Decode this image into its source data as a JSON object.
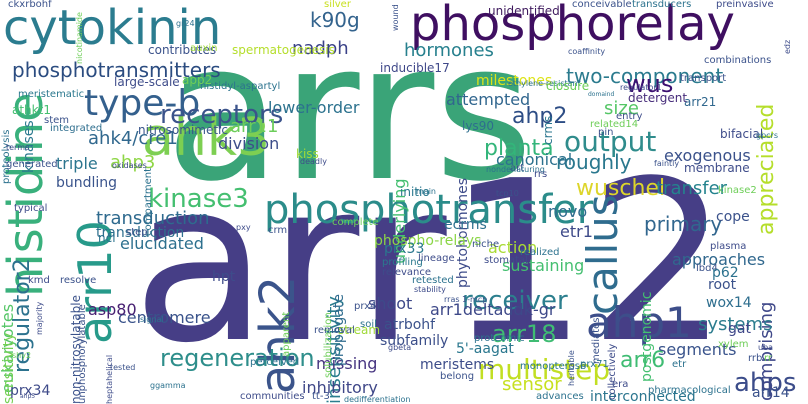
{
  "word_cloud": {
    "words": [
      {
        "text": "arrs",
        "color": "#3aa478"
      },
      {
        "text": "arr12",
        "color": "#463e86"
      },
      {
        "text": "phosphorelay",
        "color": "#3f0f61"
      },
      {
        "text": "cytokinin",
        "color": "#2b7c8f"
      },
      {
        "text": "histidine",
        "color": "#39b07c"
      },
      {
        "text": "ahk3",
        "color": "#7dcf52"
      },
      {
        "text": "callus",
        "color": "#2f6c8e"
      },
      {
        "text": "ahk2",
        "color": "#3b548b"
      },
      {
        "text": "arr10",
        "color": "#279a8a"
      },
      {
        "text": "phosphotransfer",
        "color": "#2b8c8a"
      },
      {
        "text": "type-b",
        "color": "#34608d"
      },
      {
        "text": "kinase3",
        "color": "#44bf70"
      },
      {
        "text": "phosphotransmitters",
        "color": "#2b4c80"
      },
      {
        "text": "regulator2",
        "color": "#2c728e"
      },
      {
        "text": "regeneration",
        "color": "#2e8e8b"
      },
      {
        "text": "ahp1",
        "color": "#3d4e8a"
      },
      {
        "text": "receptors",
        "color": "#3b538b"
      },
      {
        "text": "output",
        "color": "#2f8c8c"
      },
      {
        "text": "multistep",
        "color": "#c2df23"
      },
      {
        "text": "wuschel",
        "color": "#ddd52a"
      },
      {
        "text": "ahps",
        "color": "#3b4c8a"
      },
      {
        "text": "receiver",
        "color": "#2c7f8e"
      },
      {
        "text": "unidentified",
        "color": "#3f1a5e"
      },
      {
        "text": "k90g",
        "color": "#33638d"
      },
      {
        "text": "nadph",
        "color": "#3a4288"
      },
      {
        "text": "hormones",
        "color": "#27808e"
      },
      {
        "text": "two-component",
        "color": "#2b7b8e"
      },
      {
        "text": "transduction",
        "color": "#2e6a8e"
      },
      {
        "text": "ahk4/cre1",
        "color": "#31688e"
      },
      {
        "text": "arr11",
        "color": "#6ccd5a"
      },
      {
        "text": "ahp2",
        "color": "#2d4d85"
      },
      {
        "text": "planta",
        "color": "#33b57a"
      },
      {
        "text": "roughly",
        "color": "#2a788e"
      },
      {
        "text": "wus",
        "color": "#3b0f70"
      },
      {
        "text": "size",
        "color": "#55c666"
      },
      {
        "text": "appreciated",
        "color": "#b5de2b"
      },
      {
        "text": "arr18",
        "color": "#3fbc73"
      },
      {
        "text": "ahp3",
        "color": "#8ed645"
      },
      {
        "text": "eukaryotes",
        "color": "#55c667"
      },
      {
        "text": "insensitivity",
        "color": "#2a7d8e"
      },
      {
        "text": "primary",
        "color": "#31668e"
      },
      {
        "text": "comprising",
        "color": "#3f4889"
      },
      {
        "text": "systems",
        "color": "#2c7c8e"
      },
      {
        "text": "arr6",
        "color": "#3fbc73"
      },
      {
        "text": "sensor",
        "color": "#c7e020"
      },
      {
        "text": "segments",
        "color": "#3a548c"
      },
      {
        "text": "inhibitory",
        "color": "#3f4788"
      },
      {
        "text": "missing",
        "color": "#463480"
      },
      {
        "text": "elucidated",
        "color": "#2d708e"
      },
      {
        "text": "transfer",
        "color": "#25838e"
      },
      {
        "text": "division",
        "color": "#3d4e8a"
      },
      {
        "text": "lower-order",
        "color": "#2c728e"
      },
      {
        "text": "attempted",
        "color": "#31668e"
      },
      {
        "text": "canonical",
        "color": "#2c718e"
      },
      {
        "text": "exogenous",
        "color": "#3b528b"
      },
      {
        "text": "novo",
        "color": "#2f6c8e"
      },
      {
        "text": "shoot",
        "color": "#3e4989"
      },
      {
        "text": "action",
        "color": "#a8db34"
      },
      {
        "text": "underlying",
        "color": "#44bf70"
      },
      {
        "text": "phytohormones",
        "color": "#3e4c8a"
      },
      {
        "text": "triple",
        "color": "#2b758e"
      },
      {
        "text": "centromere",
        "color": "#3a538b"
      },
      {
        "text": "subfamily",
        "color": "#3c4f8a"
      },
      {
        "text": "atrbohf",
        "color": "#3b528b"
      },
      {
        "text": "arr1deltaddk-gr",
        "color": "#3e4989"
      },
      {
        "text": "propagate",
        "color": "#2f6b8e"
      },
      {
        "text": "transduction",
        "color": "#2e6f8e"
      },
      {
        "text": "lys90",
        "color": "#2e6e8e"
      },
      {
        "text": "crms",
        "color": "#2a768e"
      },
      {
        "text": "spermatogenesis",
        "color": "#b5de2b"
      },
      {
        "text": "contributes",
        "color": "#3b528b"
      },
      {
        "text": "milestones",
        "color": "#dde318"
      },
      {
        "text": "detergent",
        "color": "#472d7b"
      },
      {
        "text": "arr21",
        "color": "#31688e"
      },
      {
        "text": "phospho-relays",
        "color": "#8bd646"
      },
      {
        "text": "ecrms",
        "color": "#2d708e"
      },
      {
        "text": "etr1",
        "color": "#3e4a89"
      },
      {
        "text": "prx33",
        "color": "#2a788e"
      },
      {
        "text": "nitrosomimetic",
        "color": "#39558c"
      },
      {
        "text": "kinases",
        "color": "#2a788e"
      },
      {
        "text": "meristems",
        "color": "#3d4d8a"
      },
      {
        "text": "5'-aagat",
        "color": "#2a778e"
      },
      {
        "text": "asp80",
        "color": "#482173"
      },
      {
        "text": "hpt",
        "color": "#3e4c8a"
      },
      {
        "text": "non-nitrosylatable",
        "color": "#3b528b"
      },
      {
        "text": "bundling",
        "color": "#3a548c"
      },
      {
        "text": "sensitivity",
        "color": "#75d054"
      },
      {
        "text": "wox14",
        "color": "#2e6e8e"
      },
      {
        "text": "gat",
        "color": "#3f4788"
      },
      {
        "text": "interconnected",
        "color": "#2b758e"
      },
      {
        "text": "arr14",
        "color": "#3b528b"
      },
      {
        "text": "prx34",
        "color": "#3e4a89"
      },
      {
        "text": "sustaining",
        "color": "#44bf70"
      },
      {
        "text": "approaches",
        "color": "#31688e"
      },
      {
        "text": "postgenomic",
        "color": "#44bf70"
      },
      {
        "text": "advances",
        "color": "#2c728e"
      },
      {
        "text": "monopteros6",
        "color": "#2a778e"
      },
      {
        "text": "athkt1",
        "color": "#44bf70"
      },
      {
        "text": "histidyl-aspartyl",
        "color": "#2c738e"
      },
      {
        "text": "inducible17",
        "color": "#3f4889"
      },
      {
        "text": "app2",
        "color": "#6ece58"
      },
      {
        "text": "large-scale",
        "color": "#3e4c8a"
      },
      {
        "text": "integrated",
        "color": "#2e6e8e"
      },
      {
        "text": "meristematic",
        "color": "#2a788e"
      },
      {
        "text": "stem",
        "color": "#3b528b"
      },
      {
        "text": "auxin",
        "color": "#a0da39"
      },
      {
        "text": "silver",
        "color": "#c8e020"
      },
      {
        "text": "gr24",
        "color": "#2c718e"
      },
      {
        "text": "wound",
        "color": "#3b528b"
      },
      {
        "text": "conceivable",
        "color": "#3b528b"
      },
      {
        "text": "transducers",
        "color": "#2c728e"
      },
      {
        "text": "preinvasive",
        "color": "#3e4c8a"
      },
      {
        "text": "coaffinity",
        "color": "#3b528b"
      },
      {
        "text": "edz",
        "color": "#3e4c8a"
      },
      {
        "text": "combinations",
        "color": "#3b528b"
      },
      {
        "text": "transport",
        "color": "#3b528b"
      },
      {
        "text": "regulator1",
        "color": "#3e4c8a"
      },
      {
        "text": "ethylene-resistant",
        "color": "#2c728e"
      },
      {
        "text": "ckxrbohf",
        "color": "#3b528b"
      },
      {
        "text": "proteolysis",
        "color": "#2c728e"
      },
      {
        "text": "terms",
        "color": "#3e4c8a"
      },
      {
        "text": "generated",
        "color": "#3b528b"
      },
      {
        "text": "oxidases",
        "color": "#3e4c8a"
      },
      {
        "text": "compartment",
        "color": "#2c728e"
      },
      {
        "text": "kiss",
        "color": "#a0da39"
      },
      {
        "text": "deadly",
        "color": "#3e4c8a"
      },
      {
        "text": "main",
        "color": "#2c728e"
      },
      {
        "text": "art",
        "color": "#3b528b"
      },
      {
        "text": "profiling",
        "color": "#2a788e"
      },
      {
        "text": "relevance",
        "color": "#3e4c8a"
      },
      {
        "text": "retested",
        "color": "#2c728e"
      },
      {
        "text": "closure",
        "color": "#6ece58"
      },
      {
        "text": "domaind",
        "color": "#2c728e"
      },
      {
        "text": "entry",
        "color": "#3e4c8a"
      },
      {
        "text": "related14",
        "color": "#6ece58"
      },
      {
        "text": "pin",
        "color": "#3b528b"
      },
      {
        "text": "bifacial",
        "color": "#3e4c8a"
      },
      {
        "text": "gpcrs",
        "color": "#2c728e"
      },
      {
        "text": "faintly",
        "color": "#3b528b"
      },
      {
        "text": "membrane",
        "color": "#3e4c8a"
      },
      {
        "text": "nondenaturing",
        "color": "#2c728e"
      },
      {
        "text": "tcp10",
        "color": "#3b528b"
      },
      {
        "text": "initio",
        "color": "#2a788e"
      },
      {
        "text": "rrs",
        "color": "#3e4c8a"
      },
      {
        "text": "kinase2",
        "color": "#6ece58"
      },
      {
        "text": "cope",
        "color": "#3b528b"
      },
      {
        "text": "plasma",
        "color": "#3e4c8a"
      },
      {
        "text": "lbd4",
        "color": "#3b528b"
      },
      {
        "text": "p62",
        "color": "#2c728e"
      },
      {
        "text": "root",
        "color": "#3b528b"
      },
      {
        "text": "xylem",
        "color": "#6ece58"
      },
      {
        "text": "uba",
        "color": "#3e4c8a"
      },
      {
        "text": "rr",
        "color": "#6ece58"
      },
      {
        "text": "rrb",
        "color": "#3b528b"
      },
      {
        "text": "era",
        "color": "#3e4c8a"
      },
      {
        "text": "etr",
        "color": "#2c728e"
      },
      {
        "text": "prx71",
        "color": "#2c728e"
      },
      {
        "text": "heritable",
        "color": "#3b528b"
      },
      {
        "text": "collectively",
        "color": "#3e4c8a"
      },
      {
        "text": "pharmacological",
        "color": "#2c728e"
      },
      {
        "text": "mediates",
        "color": "#3b528b"
      },
      {
        "text": "stomatal",
        "color": "#3e4c8a"
      },
      {
        "text": "realized",
        "color": "#2c728e"
      },
      {
        "text": "niche",
        "color": "#3b528b"
      },
      {
        "text": "lineage",
        "color": "#3e4c8a"
      },
      {
        "text": "rras 1-mcp",
        "color": "#3b528b"
      },
      {
        "text": "proteomic",
        "color": "#2c728e"
      },
      {
        "text": "stability",
        "color": "#3e4c8a"
      },
      {
        "text": "solubilization",
        "color": "#6ece58"
      },
      {
        "text": "stream",
        "color": "#a0da39"
      },
      {
        "text": "prx4",
        "color": "#3b528b"
      },
      {
        "text": "gbeta",
        "color": "#3e4c8a"
      },
      {
        "text": "soil",
        "color": "#2c728e"
      },
      {
        "text": "removal",
        "color": "#3b528b"
      },
      {
        "text": "apparent",
        "color": "#6ece58"
      },
      {
        "text": "perceived",
        "color": "#2c728e"
      },
      {
        "text": "belong",
        "color": "#3b528b"
      },
      {
        "text": "communities",
        "color": "#3e4c8a"
      },
      {
        "text": "tt-3",
        "color": "#3b528b"
      },
      {
        "text": "dedifferentiation",
        "color": "#2c728e"
      },
      {
        "text": "heptahelical",
        "color": "#3e4c8a"
      },
      {
        "text": "tested",
        "color": "#3b528b"
      },
      {
        "text": "ggamma",
        "color": "#2c728e"
      },
      {
        "text": "ahp5",
        "color": "#3e4c8a"
      },
      {
        "text": "shy2",
        "color": "#6ece58"
      },
      {
        "text": "unphosphorylatable",
        "color": "#3b528b"
      },
      {
        "text": "majority",
        "color": "#3e4c8a"
      },
      {
        "text": "signal",
        "color": "#2c728e"
      },
      {
        "text": "resolve",
        "color": "#3b528b"
      },
      {
        "text": "kmd",
        "color": "#3e4c8a"
      },
      {
        "text": "ncl",
        "color": "#2c728e"
      },
      {
        "text": "step",
        "color": "#3b528b"
      },
      {
        "text": "pxy",
        "color": "#3e4c8a"
      },
      {
        "text": "crm",
        "color": "#3b528b"
      },
      {
        "text": "complete",
        "color": "#6ece58"
      },
      {
        "text": "typical",
        "color": "#3e4c8a"
      },
      {
        "text": "nicotinamide",
        "color": "#6ece58"
      }
    ]
  }
}
